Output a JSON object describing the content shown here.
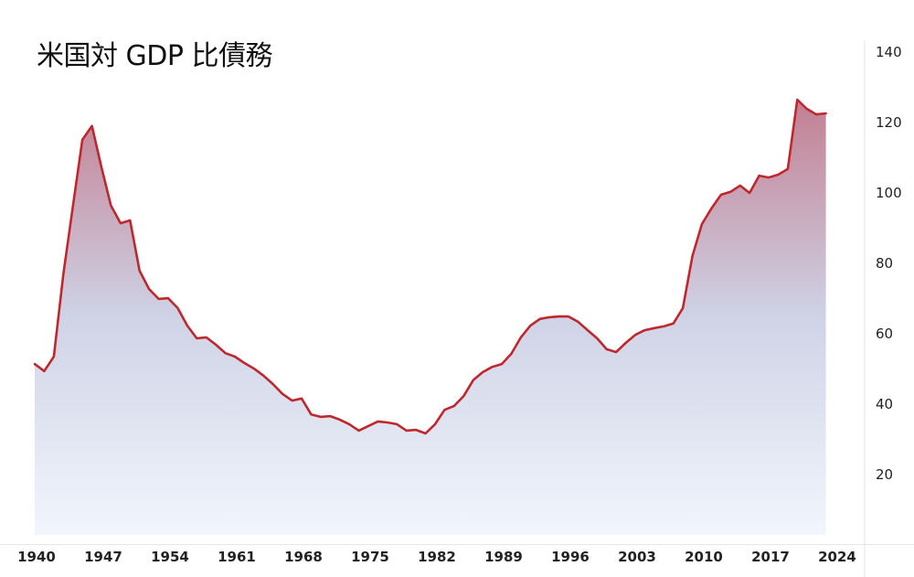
{
  "title": "米国対 GDP 比債務",
  "colors": {
    "line": "#c0272d",
    "fill_top": "#c27f92",
    "fill_mid": "#cfd3e6",
    "fill_bottom": "#f1f6fd",
    "divider": "#e6e6e6",
    "text": "#222222"
  },
  "y_axis": {
    "ticks": [
      "140",
      "120",
      "100",
      "80",
      "60",
      "40",
      "20"
    ]
  },
  "x_axis": {
    "ticks": [
      "1940",
      "1947",
      "1954",
      "1961",
      "1968",
      "1975",
      "1982",
      "1989",
      "1996",
      "2003",
      "2010",
      "2017",
      "2024"
    ]
  },
  "chart_data": {
    "type": "area",
    "title": "米国対 GDP 比債務",
    "xlabel": "",
    "ylabel": "",
    "ylim": [
      0,
      140
    ],
    "xlim": [
      1940,
      2024
    ],
    "grid": false,
    "legend": "none",
    "y_axis_position": "right",
    "x_tick_labels": [
      "1940",
      "1947",
      "1954",
      "1961",
      "1968",
      "1975",
      "1982",
      "1989",
      "1996",
      "2003",
      "2010",
      "2017",
      "2024"
    ],
    "y_tick_labels": [
      "20",
      "40",
      "60",
      "80",
      "100",
      "120",
      "140"
    ],
    "series": [
      {
        "name": "米国対 GDP 比債務",
        "x": [
          1940,
          1941,
          1942,
          1943,
          1944,
          1945,
          1946,
          1947,
          1948,
          1949,
          1950,
          1951,
          1952,
          1953,
          1954,
          1955,
          1956,
          1957,
          1958,
          1959,
          1960,
          1961,
          1962,
          1963,
          1964,
          1965,
          1966,
          1967,
          1968,
          1969,
          1970,
          1971,
          1972,
          1973,
          1974,
          1975,
          1976,
          1977,
          1978,
          1979,
          1980,
          1981,
          1982,
          1983,
          1984,
          1985,
          1986,
          1987,
          1988,
          1989,
          1990,
          1991,
          1992,
          1993,
          1994,
          1995,
          1996,
          1997,
          1998,
          1999,
          2000,
          2001,
          2002,
          2003,
          2004,
          2005,
          2006,
          2007,
          2008,
          2009,
          2010,
          2011,
          2012,
          2013,
          2014,
          2015,
          2016,
          2017,
          2018,
          2019,
          2020,
          2021,
          2022,
          2023
        ],
        "values": [
          51.4,
          49.4,
          53.5,
          76.9,
          96.1,
          115.1,
          119.0,
          107.3,
          96.4,
          91.4,
          92.2,
          77.9,
          72.7,
          69.9,
          70.1,
          67.3,
          62.3,
          58.7,
          59.0,
          56.9,
          54.5,
          53.5,
          51.7,
          50.1,
          48.1,
          45.7,
          42.9,
          41.0,
          41.6,
          37.1,
          36.4,
          36.6,
          35.6,
          34.3,
          32.5,
          33.8,
          35.1,
          34.8,
          34.3,
          32.5,
          32.7,
          31.7,
          34.3,
          38.4,
          39.5,
          42.3,
          46.8,
          49.1,
          50.6,
          51.4,
          54.3,
          59.0,
          62.3,
          64.2,
          64.7,
          64.9,
          64.9,
          63.4,
          61.0,
          58.7,
          55.6,
          54.8,
          57.4,
          59.7,
          61.0,
          61.6,
          62.1,
          62.9,
          67.3,
          82.1,
          91.2,
          95.6,
          99.5,
          100.3,
          102.1,
          100.0,
          104.9,
          104.4,
          105.2,
          106.8,
          126.5,
          123.9,
          122.3,
          122.6
        ]
      }
    ]
  }
}
